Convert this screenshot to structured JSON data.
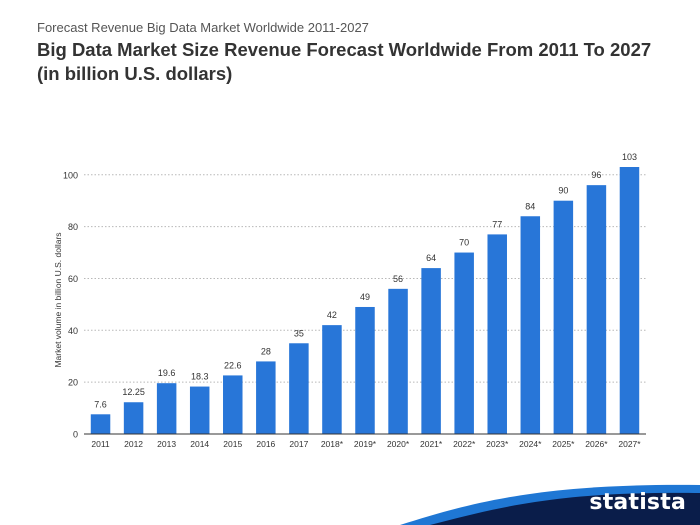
{
  "header": {
    "supertitle": "Forecast Revenue Big Data Market Worldwide 2011-2027",
    "title_line1": "Big Data Market Size Revenue Forecast Worldwide From 2011 To 2027",
    "title_line2": "(in billion U.S. dollars)"
  },
  "brand": {
    "name": "statista",
    "color": "#0a1d4a",
    "accent": "#1f77d4"
  },
  "chart_data": {
    "type": "bar",
    "title": "Big Data Market Size Revenue Forecast Worldwide From 2011 To 2027 (in billion U.S. dollars)",
    "categories": [
      "2011",
      "2012",
      "2013",
      "2014",
      "2015",
      "2016",
      "2017",
      "2018*",
      "2019*",
      "2020*",
      "2021*",
      "2022*",
      "2023*",
      "2024*",
      "2025*",
      "2026*",
      "2027*"
    ],
    "values": [
      7.6,
      12.25,
      19.6,
      18.3,
      22.6,
      28,
      35,
      42,
      49,
      56,
      64,
      70,
      77,
      84,
      90,
      96,
      103
    ],
    "value_labels": [
      "7.6",
      "12.25",
      "19.6",
      "18.3",
      "22.6",
      "28",
      "35",
      "42",
      "49",
      "56",
      "64",
      "70",
      "77",
      "84",
      "90",
      "96",
      "103"
    ],
    "xlabel": "",
    "ylabel": "Market volume in billion U.S. dollars",
    "ylim": [
      0,
      103
    ],
    "yticks": [
      0,
      20,
      40,
      60,
      80,
      100
    ],
    "grid": true,
    "bar_color": "#2876d8"
  }
}
